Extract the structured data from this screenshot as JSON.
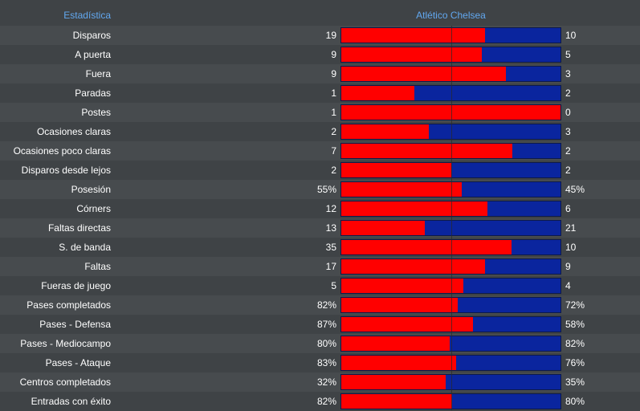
{
  "header": {
    "stat_label": "Estadística",
    "teams_label": "Atlético Chelsea"
  },
  "colors": {
    "home": "#ff0000",
    "away": "#0a259e",
    "header_text": "#62a8f0"
  },
  "stats": [
    {
      "label": "Disparos",
      "home": "19",
      "away": "10",
      "home_share": 0.655
    },
    {
      "label": "A puerta",
      "home": "9",
      "away": "5",
      "home_share": 0.64
    },
    {
      "label": "Fuera",
      "home": "9",
      "away": "3",
      "home_share": 0.75
    },
    {
      "label": "Paradas",
      "home": "1",
      "away": "2",
      "home_share": 0.333
    },
    {
      "label": "Postes",
      "home": "1",
      "away": "0",
      "home_share": 1.0
    },
    {
      "label": "Ocasiones claras",
      "home": "2",
      "away": "3",
      "home_share": 0.4
    },
    {
      "label": "Ocasiones poco claras",
      "home": "7",
      "away": "2",
      "home_share": 0.78
    },
    {
      "label": "Disparos desde lejos",
      "home": "2",
      "away": "2",
      "home_share": 0.5
    },
    {
      "label": "Posesión",
      "home": "55%",
      "away": "45%",
      "home_share": 0.55
    },
    {
      "label": "Córners",
      "home": "12",
      "away": "6",
      "home_share": 0.667
    },
    {
      "label": "Faltas directas",
      "home": "13",
      "away": "21",
      "home_share": 0.382
    },
    {
      "label": "S. de banda",
      "home": "35",
      "away": "10",
      "home_share": 0.778
    },
    {
      "label": "Faltas",
      "home": "17",
      "away": "9",
      "home_share": 0.654
    },
    {
      "label": "Fueras de juego",
      "home": "5",
      "away": "4",
      "home_share": 0.556
    },
    {
      "label": "Pases completados",
      "home": "82%",
      "away": "72%",
      "home_share": 0.532
    },
    {
      "label": "Pases - Defensa",
      "home": "87%",
      "away": "58%",
      "home_share": 0.6
    },
    {
      "label": "Pases - Mediocampo",
      "home": "80%",
      "away": "82%",
      "home_share": 0.494
    },
    {
      "label": "Pases - Ataque",
      "home": "83%",
      "away": "76%",
      "home_share": 0.522
    },
    {
      "label": "Centros completados",
      "home": "32%",
      "away": "35%",
      "home_share": 0.478
    },
    {
      "label": "Entradas con éxito",
      "home": "82%",
      "away": "80%",
      "home_share": 0.506
    }
  ]
}
